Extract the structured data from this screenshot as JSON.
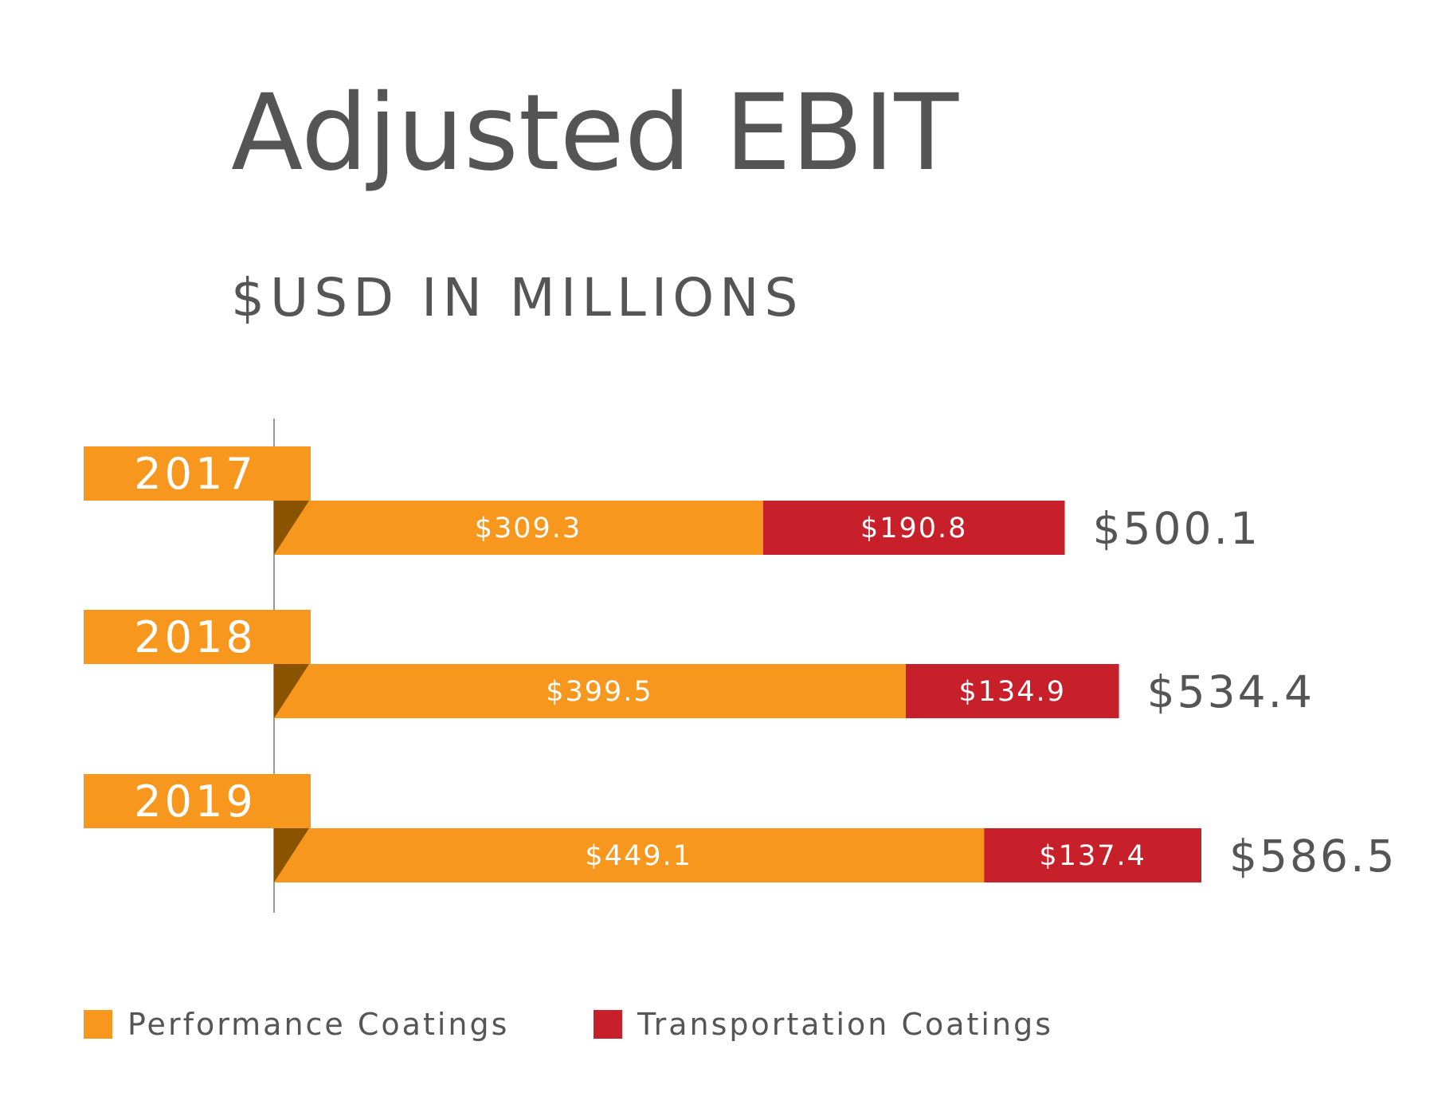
{
  "chart_data": {
    "type": "bar",
    "orientation": "horizontal",
    "stacked": true,
    "title": "Adjusted EBIT",
    "subtitle": "$USD IN MILLIONS",
    "categories": [
      "2017",
      "2018",
      "2019"
    ],
    "series": [
      {
        "name": "Performance Coatings",
        "color": "#F7971E",
        "values": [
          309.3,
          399.5,
          449.1
        ],
        "labels": [
          "$309.3",
          "$399.5",
          "$449.1"
        ]
      },
      {
        "name": "Transportation Coatings",
        "color": "#C8202A",
        "values": [
          190.8,
          134.9,
          137.4
        ],
        "labels": [
          "$190.8",
          "$134.9",
          "$137.4"
        ]
      }
    ],
    "totals": [
      500.1,
      534.4,
      586.5
    ],
    "total_labels": [
      "$500.1",
      "$534.4",
      "$586.5"
    ],
    "xlim": [
      0,
      586.5
    ],
    "grid": false,
    "legend_position": "bottom-left",
    "colors": {
      "axis": "#777777",
      "fold": "#8A5300",
      "text": "#555555"
    }
  }
}
